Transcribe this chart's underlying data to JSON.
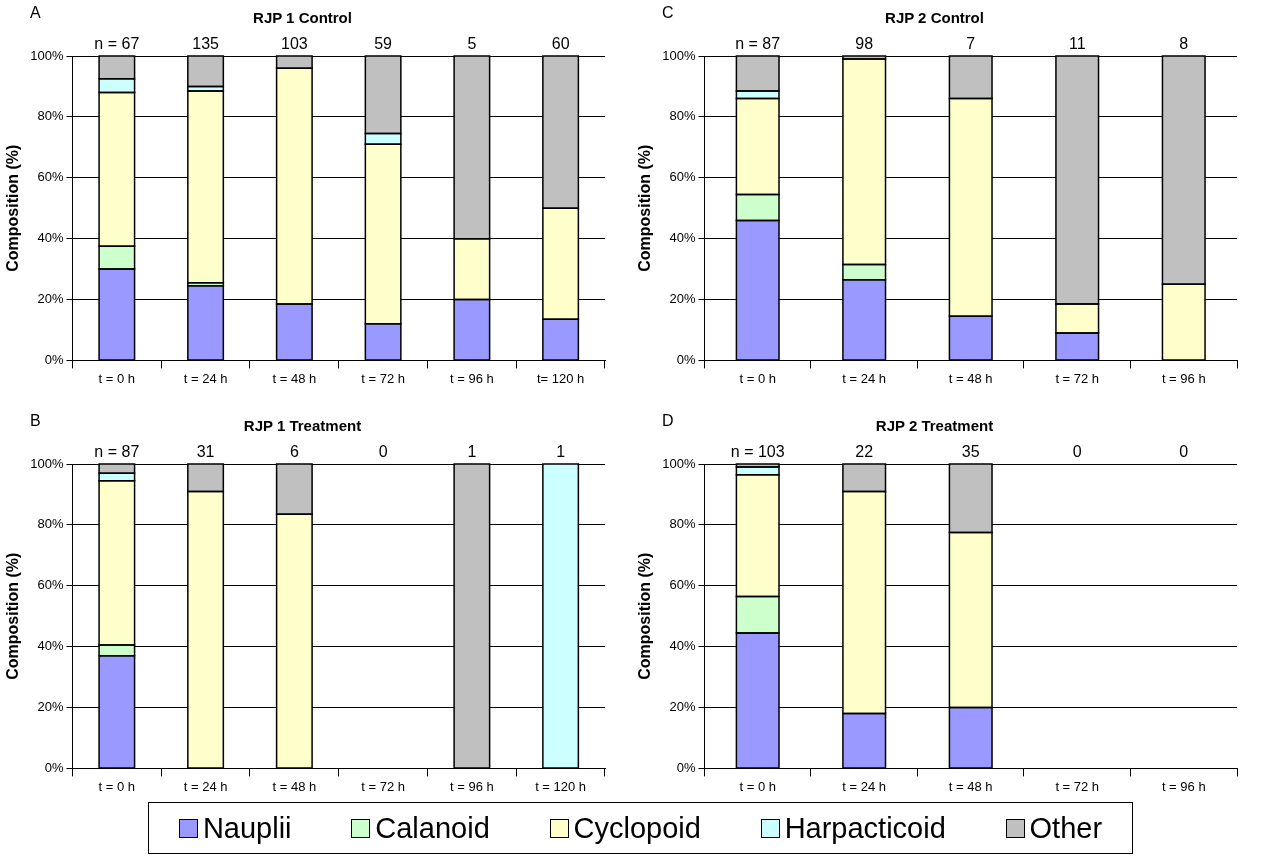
{
  "chart_data": [
    {
      "type": "bar",
      "title": "RJP 1 Control",
      "ylabel": "Composition (%)",
      "stacked": true,
      "grid": "y",
      "legend": "bottom",
      "categories": [
        "t = 0 h",
        "t = 24 h",
        "t = 48 h",
        "t = 72 h",
        "t = 96 h",
        "t= 120 h"
      ],
      "ylim": [
        0,
        100
      ],
      "yticks": [
        {
          "value": 0,
          "label": "0%"
        },
        {
          "value": 20,
          "label": "20%"
        },
        {
          "value": 40,
          "label": "40%"
        },
        {
          "value": 60,
          "label": "60%"
        },
        {
          "value": 80,
          "label": "80%"
        },
        {
          "value": 100,
          "label": "100%"
        }
      ],
      "series": [
        {
          "name": "Nauplii",
          "color": "#9999ff",
          "values": [
            30,
            24.5,
            18.5,
            12,
            20,
            13.5
          ]
        },
        {
          "name": "Calanoid",
          "color": "#ccffcc",
          "values": [
            7.5,
            1,
            0,
            0,
            0,
            0
          ]
        },
        {
          "name": "Cyclopoid",
          "color": "#ffffcc",
          "values": [
            50.5,
            63,
            77.5,
            59,
            20,
            36.5
          ]
        },
        {
          "name": "Harpacticoid",
          "color": "#ccffff",
          "values": [
            4.5,
            1.5,
            0,
            3.5,
            0,
            0
          ]
        },
        {
          "name": "Other",
          "color": "#c0c0c0",
          "values": [
            7.5,
            10,
            4,
            25.5,
            60,
            50
          ]
        }
      ],
      "annotations": [
        "A",
        "n = 67",
        "135",
        "103",
        "59",
        "5",
        "60"
      ]
    },
    {
      "type": "bar",
      "title": "RJP 2 Control",
      "ylabel": "Composition (%)",
      "stacked": true,
      "grid": "y",
      "categories": [
        "t = 0 h",
        "t = 24 h",
        "t = 48 h",
        "t = 72 h",
        "t = 96 h"
      ],
      "ylim": [
        0,
        100
      ],
      "yticks": [
        {
          "value": 0,
          "label": "0%"
        },
        {
          "value": 20,
          "label": "20%"
        },
        {
          "value": 40,
          "label": "40%"
        },
        {
          "value": 60,
          "label": "60%"
        },
        {
          "value": 80,
          "label": "80%"
        },
        {
          "value": 100,
          "label": "100%"
        }
      ],
      "series": [
        {
          "color": "#9999ff",
          "values": [
            46,
            26.5,
            14.5,
            9,
            0
          ]
        },
        {
          "color": "#ccffcc",
          "values": [
            8.5,
            5,
            0,
            0,
            0
          ]
        },
        {
          "color": "#ffffcc",
          "values": [
            31.5,
            67.5,
            71.5,
            9.5,
            25
          ]
        },
        {
          "color": "#ccffff",
          "values": [
            2.5,
            0,
            0,
            0,
            0
          ]
        },
        {
          "color": "#c0c0c0",
          "values": [
            11.5,
            1,
            14,
            81.5,
            75
          ]
        }
      ],
      "annotations": [
        "C",
        "n = 87",
        "98",
        "7",
        "11",
        "8"
      ]
    },
    {
      "type": "bar",
      "title": "RJP 1 Treatment",
      "ylabel": "Composition (%)",
      "stacked": true,
      "grid": "y",
      "categories": [
        "t = 0 h",
        "t = 24 h",
        "t = 48 h",
        "t = 72 h",
        "t = 96 h",
        "t = 120 h"
      ],
      "ylim": [
        0,
        100
      ],
      "yticks": [
        {
          "value": 0,
          "label": "0%"
        },
        {
          "value": 20,
          "label": "20%"
        },
        {
          "value": 40,
          "label": "40%"
        },
        {
          "value": 60,
          "label": "60%"
        },
        {
          "value": 80,
          "label": "80%"
        },
        {
          "value": 100,
          "label": "100%"
        }
      ],
      "series": [
        {
          "color": "#9999ff",
          "values": [
            37,
            0,
            0,
            null,
            0,
            0
          ]
        },
        {
          "color": "#ccffcc",
          "values": [
            3.5,
            0,
            0,
            null,
            0,
            0
          ]
        },
        {
          "color": "#ffffcc",
          "values": [
            54,
            91,
            83.5,
            null,
            0,
            0
          ]
        },
        {
          "color": "#ccffff",
          "values": [
            2.5,
            0,
            0,
            null,
            0,
            100
          ]
        },
        {
          "color": "#c0c0c0",
          "values": [
            3,
            9,
            16.5,
            null,
            100,
            0
          ]
        }
      ],
      "annotations": [
        "B",
        "n = 87",
        "31",
        "6",
        "0",
        "1",
        "1"
      ]
    },
    {
      "type": "bar",
      "title": "RJP 2 Treatment",
      "ylabel": "Composition (%)",
      "stacked": true,
      "grid": "y",
      "categories": [
        "t = 0 h",
        "t = 24 h",
        "t = 48 h",
        "t = 72 h",
        "t = 96 h"
      ],
      "ylim": [
        0,
        100
      ],
      "yticks": [
        {
          "value": 0,
          "label": "0%"
        },
        {
          "value": 20,
          "label": "20%"
        },
        {
          "value": 40,
          "label": "40%"
        },
        {
          "value": 60,
          "label": "60%"
        },
        {
          "value": 80,
          "label": "80%"
        },
        {
          "value": 100,
          "label": "100%"
        }
      ],
      "series": [
        {
          "color": "#9999ff",
          "values": [
            44.5,
            18,
            20,
            null,
            null
          ]
        },
        {
          "color": "#ccffcc",
          "values": [
            12,
            0,
            0,
            null,
            null
          ]
        },
        {
          "color": "#ffffcc",
          "values": [
            40,
            73,
            57.5,
            null,
            null
          ]
        },
        {
          "color": "#ccffff",
          "values": [
            2.5,
            0,
            0,
            null,
            null
          ]
        },
        {
          "color": "#c0c0c0",
          "values": [
            1,
            9,
            22.5,
            null,
            null
          ]
        }
      ],
      "annotations": [
        "D",
        "n = 103",
        "22",
        "35",
        "0",
        "0"
      ]
    }
  ]
}
